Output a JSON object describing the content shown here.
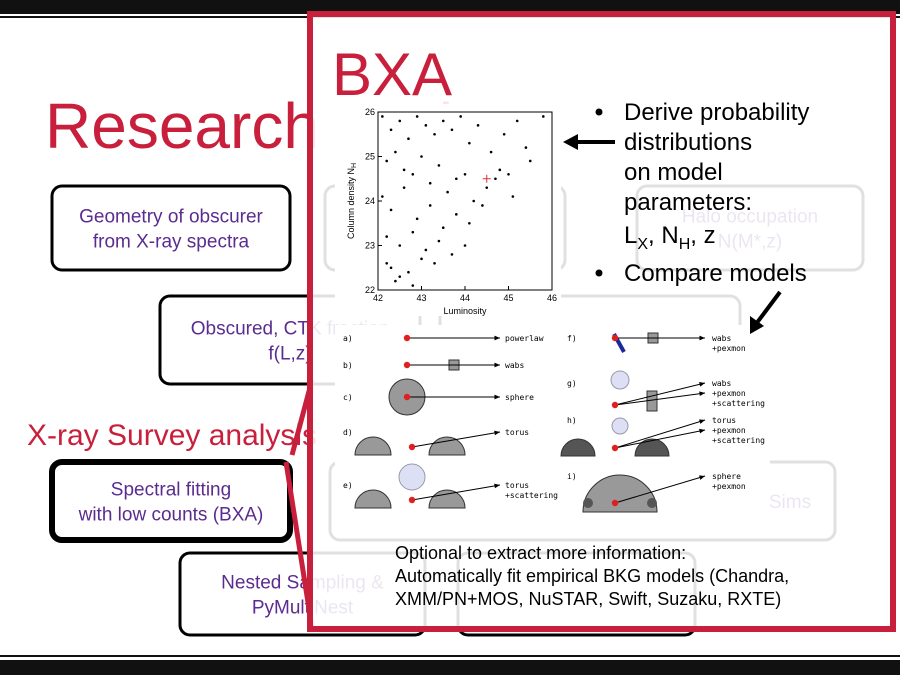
{
  "slide": {
    "title": "Research Topics",
    "section": "X-ray Survey analysis",
    "boxes": [
      {
        "lines": [
          "Geometry of obscurer",
          "from X-ray spectra"
        ]
      },
      {
        "lines": []
      },
      {
        "lines": [
          "Halo occupation",
          "N(M*,z)"
        ]
      },
      {
        "lines": [
          "Obscured, CTK fraction",
          "f(L,z)"
        ]
      },
      {
        "lines": [
          "Obscured, CTK fraction"
        ]
      },
      {
        "lines": [
          "Spectral fitting",
          "with low counts (BXA)"
        ]
      },
      {
        "lines": [
          "Sims"
        ]
      },
      {
        "lines": [
          "Nested Sampling &",
          "PyMultiNest"
        ]
      },
      {
        "lines": []
      }
    ]
  },
  "overlay": {
    "title": "BXA",
    "bullet1": [
      "Derive probability",
      "distributions",
      "on model",
      "parameters:"
    ],
    "params": [
      {
        "text": "L",
        "sub": "X"
      },
      {
        "text": ", N",
        "sub": "H"
      },
      {
        "text": ", z"
      }
    ],
    "bullet2": "Compare models",
    "note": [
      "Optional to extract more information:",
      "Automatically fit empirical BKG models (Chandra,",
      "XMM/PN+MOS, NuSTAR, Swift, Suzaku, RXTE)"
    ],
    "scatter": {
      "xlabel": "Luminosity",
      "ylabel": "Column density N",
      "ylabel_sub": "H",
      "xlim": [
        42,
        46
      ],
      "ylim": [
        22,
        26
      ],
      "xticks": [
        42,
        43,
        44,
        45,
        46
      ],
      "yticks": [
        22,
        23,
        24,
        25,
        26
      ],
      "x": [
        42.1,
        42.3,
        42.5,
        42.7,
        42.9,
        43.1,
        43.3,
        43.5,
        43.7,
        43.9,
        44.1,
        44.3,
        44.6,
        44.9,
        45.2,
        45.5,
        45.8,
        42.2,
        42.4,
        42.6,
        42.8,
        43.0,
        43.2,
        43.4,
        43.6,
        43.8,
        44.0,
        44.2,
        44.5,
        44.8,
        45.1,
        45.4,
        42.1,
        42.3,
        42.6,
        42.9,
        43.2,
        43.5,
        43.8,
        44.1,
        44.4,
        44.7,
        45.0,
        42.2,
        42.5,
        42.8,
        43.1,
        43.4,
        43.7,
        44.0,
        42.3,
        42.7,
        43.0,
        43.3,
        42.4,
        42.8,
        42.2,
        42.5
      ],
      "y": [
        25.9,
        25.6,
        25.8,
        25.4,
        25.9,
        25.7,
        25.5,
        25.8,
        25.6,
        25.9,
        25.3,
        25.7,
        25.1,
        25.5,
        25.8,
        24.9,
        25.9,
        24.9,
        25.1,
        24.7,
        24.6,
        25.0,
        24.4,
        24.8,
        24.2,
        24.5,
        24.6,
        24.0,
        24.3,
        24.7,
        24.1,
        25.2,
        24.1,
        23.8,
        24.3,
        23.6,
        23.9,
        23.4,
        23.7,
        23.5,
        23.9,
        24.5,
        24.6,
        23.2,
        23.0,
        23.3,
        22.9,
        23.1,
        22.8,
        23.0,
        22.5,
        22.4,
        22.7,
        22.6,
        22.2,
        22.1,
        22.6,
        22.3
      ],
      "marker": {
        "x": 44.5,
        "y": 24.5,
        "color": "#e03030"
      }
    },
    "models": [
      {
        "id": "a)",
        "label": [
          "powerlaw"
        ]
      },
      {
        "id": "b)",
        "label": [
          "wabs"
        ]
      },
      {
        "id": "c)",
        "label": [
          "sphere"
        ]
      },
      {
        "id": "d)",
        "label": [
          "torus"
        ]
      },
      {
        "id": "e)",
        "label": [
          "torus",
          "+scattering"
        ]
      },
      {
        "id": "f)",
        "label": [
          "wabs",
          "+pexmon"
        ]
      },
      {
        "id": "g)",
        "label": [
          "wabs",
          "+pexmon",
          "+scattering"
        ]
      },
      {
        "id": "h)",
        "label": [
          "torus",
          "+pexmon",
          "+scattering"
        ]
      },
      {
        "id": "i)",
        "label": [
          "sphere",
          "+pexmon"
        ]
      }
    ]
  }
}
